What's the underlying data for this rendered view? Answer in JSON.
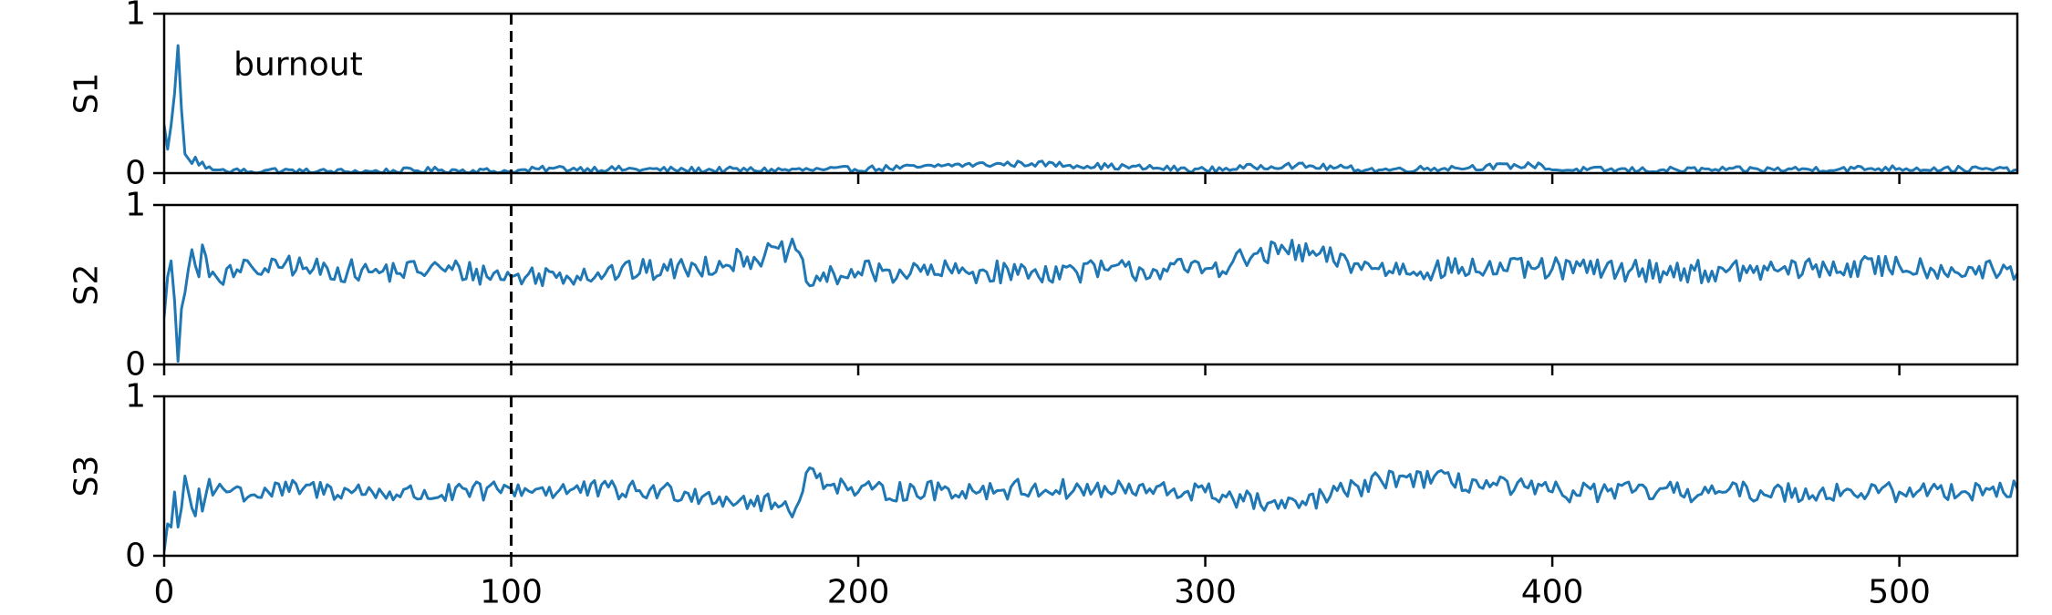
{
  "chart_data": {
    "type": "line",
    "shared_x": {
      "range": [
        0,
        534
      ],
      "ticks": [
        0,
        100,
        200,
        300,
        400,
        500
      ],
      "tick_labels": [
        "0",
        "100",
        "200",
        "300",
        "400",
        "500"
      ]
    },
    "series_color": "#1f77b4",
    "marker_x": 100,
    "panels": [
      {
        "ylabel": "S1",
        "ylim": [
          0,
          1
        ],
        "yticks": [
          0,
          1
        ],
        "ytick_labels": [
          "0",
          "1"
        ],
        "annotation": "burnout",
        "baseline": 0.01,
        "noise": 0.012,
        "keypoints": [
          [
            0,
            0.3
          ],
          [
            1,
            0.15
          ],
          [
            2,
            0.3
          ],
          [
            3,
            0.5
          ],
          [
            4,
            0.8
          ],
          [
            5,
            0.4
          ],
          [
            6,
            0.12
          ],
          [
            7,
            0.09
          ],
          [
            8,
            0.06
          ],
          [
            9,
            0.1
          ],
          [
            10,
            0.05
          ],
          [
            11,
            0.07
          ],
          [
            12,
            0.03
          ],
          [
            13,
            0.04
          ],
          [
            14,
            0.02
          ],
          [
            16,
            0.02
          ],
          [
            18,
            0.01
          ],
          [
            20,
            0.02
          ],
          [
            25,
            0.01
          ],
          [
            30,
            0.02
          ],
          [
            40,
            0.01
          ],
          [
            60,
            0.01
          ],
          [
            80,
            0.02
          ],
          [
            100,
            0.01
          ],
          [
            112,
            0.03
          ],
          [
            150,
            0.02
          ],
          [
            190,
            0.02
          ],
          [
            222,
            0.04
          ],
          [
            225,
            0.05
          ],
          [
            250,
            0.06
          ],
          [
            300,
            0.02
          ],
          [
            323,
            0.05
          ],
          [
            350,
            0.02
          ],
          [
            397,
            0.05
          ],
          [
            400,
            0.02
          ],
          [
            450,
            0.02
          ],
          [
            500,
            0.03
          ],
          [
            534,
            0.02
          ]
        ]
      },
      {
        "ylabel": "S2",
        "ylim": [
          0,
          1
        ],
        "yticks": [
          0,
          1
        ],
        "ytick_labels": [
          "0",
          "1"
        ],
        "baseline": 0.59,
        "noise": 0.045,
        "keypoints": [
          [
            0,
            0.3
          ],
          [
            1,
            0.55
          ],
          [
            2,
            0.65
          ],
          [
            3,
            0.4
          ],
          [
            4,
            0.02
          ],
          [
            5,
            0.35
          ],
          [
            6,
            0.45
          ],
          [
            7,
            0.6
          ],
          [
            8,
            0.72
          ],
          [
            9,
            0.62
          ],
          [
            10,
            0.55
          ],
          [
            11,
            0.75
          ],
          [
            12,
            0.68
          ],
          [
            13,
            0.55
          ],
          [
            14,
            0.58
          ],
          [
            16,
            0.52
          ],
          [
            18,
            0.6
          ],
          [
            20,
            0.55
          ],
          [
            25,
            0.62
          ],
          [
            30,
            0.58
          ],
          [
            35,
            0.64
          ],
          [
            40,
            0.6
          ],
          [
            60,
            0.58
          ],
          [
            80,
            0.6
          ],
          [
            100,
            0.55
          ],
          [
            150,
            0.6
          ],
          [
            182,
            0.72
          ],
          [
            185,
            0.52
          ],
          [
            200,
            0.58
          ],
          [
            250,
            0.58
          ],
          [
            300,
            0.6
          ],
          [
            323,
            0.72
          ],
          [
            350,
            0.6
          ],
          [
            400,
            0.6
          ],
          [
            450,
            0.58
          ],
          [
            500,
            0.62
          ],
          [
            534,
            0.57
          ]
        ]
      },
      {
        "ylabel": "S3",
        "ylim": [
          0,
          1
        ],
        "yticks": [
          0,
          1
        ],
        "ytick_labels": [
          "0",
          "1"
        ],
        "baseline": 0.4,
        "noise": 0.04,
        "keypoints": [
          [
            0,
            0.03
          ],
          [
            1,
            0.2
          ],
          [
            2,
            0.18
          ],
          [
            3,
            0.4
          ],
          [
            4,
            0.18
          ],
          [
            5,
            0.3
          ],
          [
            6,
            0.5
          ],
          [
            7,
            0.4
          ],
          [
            8,
            0.3
          ],
          [
            9,
            0.25
          ],
          [
            10,
            0.42
          ],
          [
            11,
            0.28
          ],
          [
            12,
            0.38
          ],
          [
            13,
            0.48
          ],
          [
            14,
            0.38
          ],
          [
            16,
            0.45
          ],
          [
            18,
            0.4
          ],
          [
            20,
            0.42
          ],
          [
            25,
            0.38
          ],
          [
            30,
            0.4
          ],
          [
            40,
            0.42
          ],
          [
            60,
            0.4
          ],
          [
            80,
            0.38
          ],
          [
            100,
            0.42
          ],
          [
            150,
            0.4
          ],
          [
            182,
            0.3
          ],
          [
            185,
            0.52
          ],
          [
            200,
            0.4
          ],
          [
            250,
            0.42
          ],
          [
            300,
            0.4
          ],
          [
            323,
            0.3
          ],
          [
            356,
            0.5
          ],
          [
            400,
            0.4
          ],
          [
            450,
            0.4
          ],
          [
            500,
            0.4
          ],
          [
            534,
            0.42
          ]
        ]
      }
    ]
  }
}
